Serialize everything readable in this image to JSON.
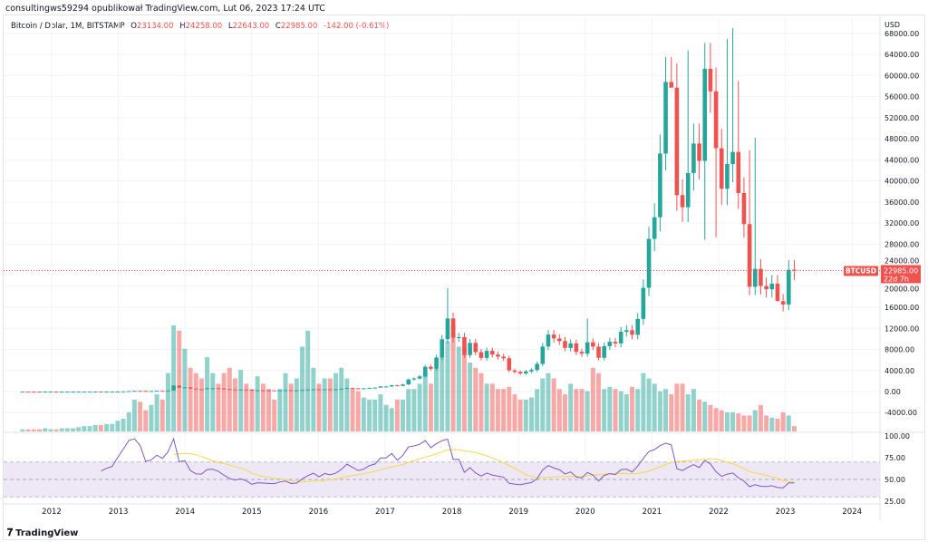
{
  "publisher": "consultingws59294 opublikował TradingView.com, Lut 06, 2023 17:24 UTC",
  "legend": {
    "symbol": "Bitcoin / Dolar, 1M, BITSTAMP",
    "o_label": "O",
    "o": "23134.00",
    "h_label": "H",
    "h": "24258.00",
    "l_label": "L",
    "l": "22643.00",
    "c_label": "C",
    "c": "22985.00",
    "change": "-142.00 (-0.61%)"
  },
  "currency": "USD",
  "last_price": {
    "symbol": "BTCUSD",
    "price": "22985.00",
    "countdown": "22d 7h",
    "value": 22985
  },
  "logo": "TradingView",
  "colors": {
    "up": "#26a69a",
    "down": "#ef5350",
    "rsi": "#7e57c2",
    "rsi_ma": "#f5d942",
    "band": "#ede7f6"
  },
  "chart_data": {
    "type": "candlestick",
    "start": "2011-08",
    "interval": "1M",
    "price_ticks": [
      "68000.00",
      "64000.00",
      "60000.00",
      "56000.00",
      "52000.00",
      "48000.00",
      "44000.00",
      "40000.00",
      "36000.00",
      "32000.00",
      "28000.00",
      "24000.00",
      "20000.00",
      "16000.00",
      "12000.00",
      "8000.00",
      "4000.00",
      "0.00",
      "-4000.00"
    ],
    "rsi_ticks": [
      "100.00",
      "75.00",
      "50.00",
      "25.00"
    ],
    "x_ticks": [
      "2012",
      "2013",
      "2014",
      "2015",
      "2016",
      "2017",
      "2018",
      "2019",
      "2020",
      "2021",
      "2022",
      "2023",
      "2024"
    ],
    "closes": [
      8,
      5,
      3.2,
      3,
      4.7,
      5.5,
      4.9,
      4.9,
      5,
      5.1,
      6.7,
      9.1,
      10,
      12.4,
      11.2,
      12.6,
      13.5,
      20,
      33,
      93,
      139,
      129,
      97,
      106,
      141,
      133,
      198,
      1130,
      732,
      800,
      550,
      450,
      445,
      630,
      640,
      585,
      480,
      385,
      340,
      375,
      320,
      217,
      254,
      244,
      236,
      230,
      263,
      284,
      230,
      236,
      314,
      377,
      430,
      368,
      437,
      416,
      448,
      531,
      671,
      624,
      574,
      609,
      700,
      745,
      964,
      965,
      1190,
      1080,
      1348,
      2286,
      2480,
      2875,
      4703,
      4338,
      6468,
      9946,
      13880,
      10220,
      10330,
      6930,
      9240,
      7490,
      6390,
      7730,
      7030,
      6630,
      6320,
      4020,
      3740,
      3440,
      3820,
      4100,
      5260,
      8550,
      10820,
      10080,
      9590,
      8290,
      9150,
      7540,
      7190,
      9350,
      8520,
      6410,
      8620,
      9450,
      9140,
      11350,
      11650,
      10780,
      13800,
      19700,
      28990,
      33100,
      45200,
      58800,
      57700,
      37300,
      35000,
      41500,
      47100,
      43800,
      61300,
      57000,
      46200,
      38500,
      43200,
      45500,
      37700,
      31800,
      19900,
      23300,
      20050,
      19420,
      20490,
      17160,
      16540,
      23130,
      22985
    ],
    "wick_overrides": {
      "76": 19666,
      "101": 13880,
      "115": 41950,
      "116": 58350,
      "119": 64800,
      "123": 52900,
      "126": 66930,
      "127": 69000,
      "128": 59000,
      "130": 45800,
      "131": 48200,
      "124": 29300,
      "122": 28800,
      "135": 17600,
      "137": 15480
    },
    "volumes": [
      2,
      2,
      2,
      2,
      3,
      2,
      2,
      3,
      3,
      3,
      4,
      5,
      5,
      6,
      6,
      7,
      7,
      10,
      12,
      18,
      30,
      28,
      20,
      25,
      35,
      30,
      55,
      100,
      95,
      78,
      60,
      55,
      50,
      70,
      55,
      45,
      55,
      60,
      50,
      58,
      45,
      40,
      52,
      45,
      40,
      30,
      40,
      55,
      45,
      50,
      80,
      95,
      60,
      45,
      50,
      50,
      55,
      60,
      50,
      40,
      38,
      32,
      30,
      30,
      35,
      25,
      22,
      30,
      30,
      40,
      40,
      45,
      55,
      45,
      60,
      70,
      85,
      100,
      80,
      80,
      65,
      60,
      55,
      45,
      45,
      40,
      40,
      42,
      35,
      30,
      30,
      32,
      40,
      50,
      55,
      50,
      40,
      35,
      45,
      40,
      40,
      38,
      60,
      55,
      40,
      42,
      40,
      38,
      35,
      42,
      40,
      55,
      50,
      45,
      38,
      40,
      35,
      45,
      45,
      35,
      40,
      30,
      28,
      25,
      22,
      20,
      18,
      18,
      17,
      15,
      15,
      20,
      25,
      15,
      13,
      12,
      18,
      15,
      5
    ]
  }
}
